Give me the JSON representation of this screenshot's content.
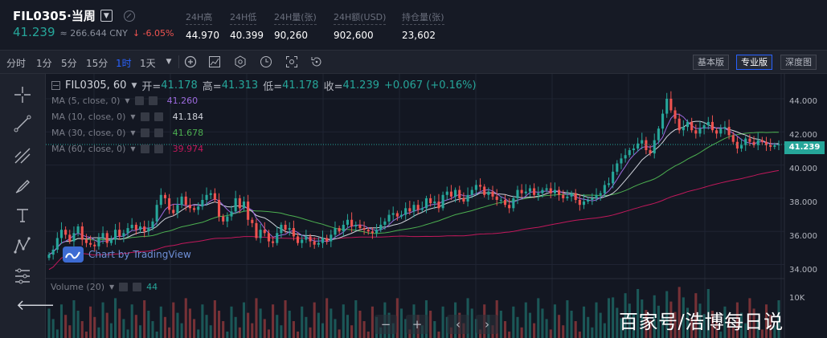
{
  "header": {
    "symbol": "FIL0305·当周",
    "last_price": "41.239",
    "approx_cny": "≈ 266.644 CNY",
    "change": "↓ -6.05%",
    "stats": [
      {
        "label": "24H高",
        "value": "44.970"
      },
      {
        "label": "24H低",
        "value": "40.399"
      },
      {
        "label": "24H量(张)",
        "value": "90,260"
      },
      {
        "label": "24H额(USD)",
        "value": "902,600"
      },
      {
        "label": "持仓量(张)",
        "value": "23,602"
      }
    ]
  },
  "toolbar": {
    "intervals": [
      "分时",
      "1分",
      "5分",
      "15分",
      "1时",
      "1天"
    ],
    "active_interval": "1时",
    "view_buttons": [
      "基本版",
      "专业版",
      "深度图"
    ],
    "active_view": "专业版"
  },
  "legend": {
    "symbol": "FIL0305, 60",
    "open_label": "开=",
    "open": "41.178",
    "high_label": "高=",
    "high": "41.313",
    "low_label": "低=",
    "low": "41.178",
    "close_label": "收=",
    "close": "41.239",
    "change": "+0.067 (+0.16%)",
    "mas": [
      {
        "label": "MA (5, close, 0)",
        "value": "41.260",
        "color": "#9c6ade"
      },
      {
        "label": "MA (10, close, 0)",
        "value": "41.184",
        "color": "#d1d4dc"
      },
      {
        "label": "MA (30, close, 0)",
        "value": "41.678",
        "color": "#4caf50"
      },
      {
        "label": "MA (60, close, 0)",
        "value": "39.974",
        "color": "#c2185b"
      }
    ],
    "volume_label": "Volume (20)",
    "volume_value": "44"
  },
  "watermark": "Chart by TradingView",
  "price_axis": [
    "44.000",
    "42.000",
    "40.000",
    "38.000",
    "36.000",
    "34.000"
  ],
  "volume_axis": "10K",
  "current_price_tag": "41.239",
  "nav_buttons": [
    "−",
    "+",
    "‹",
    "›"
  ],
  "brand_text": "百家号/浩博每日说",
  "colors": {
    "up": "#26a69a",
    "down": "#ef5350",
    "background": "#131722",
    "accent": "#2962ff"
  },
  "chart_data": {
    "type": "candlestick",
    "interval": "60",
    "ylim": [
      33.3,
      45.5
    ],
    "close": [
      34.6,
      34.9,
      35.6,
      36.1,
      35.8,
      35.4,
      35.9,
      36.3,
      35.5,
      35.3,
      35.2,
      35.1,
      35.6,
      35.9,
      35.3,
      35.5,
      36.1,
      35.7,
      35.9,
      36.2,
      36.4,
      36.1,
      36.3,
      36.0,
      36.2,
      36.6,
      37.6,
      38.2,
      38.0,
      37.3,
      37.1,
      37.6,
      38.1,
      37.6,
      37.4,
      37.3,
      37.5,
      37.9,
      38.2,
      38.3,
      37.9,
      36.9,
      36.6,
      36.9,
      37.2,
      38.0,
      37.4,
      37.8,
      36.7,
      36.5,
      35.6,
      36.1,
      35.9,
      35.4,
      35.3,
      35.9,
      36.4,
      36.1,
      36.2,
      35.7,
      35.3,
      35.5,
      35.7,
      35.4,
      35.2,
      35.3,
      35.6,
      35.4,
      35.8,
      36.2,
      36.0,
      36.4,
      36.7,
      36.3,
      36.4,
      36.2,
      36.1,
      36.0,
      35.9,
      36.1,
      36.4,
      36.6,
      37.0,
      37.1,
      36.9,
      37.0,
      37.4,
      37.2,
      37.6,
      37.3,
      37.4,
      38.0,
      37.7,
      37.8,
      37.4,
      38.2,
      38.4,
      38.1,
      38.5,
      38.0,
      37.8,
      38.2,
      38.5,
      38.8,
      38.7,
      38.2,
      38.4,
      38.1,
      37.9,
      37.9,
      37.6,
      37.4,
      38.0,
      38.5,
      38.3,
      38.4,
      38.6,
      38.2,
      38.3,
      38.5,
      38.6,
      38.3,
      38.5,
      38.2,
      38.0,
      38.1,
      38.3,
      37.9,
      37.6,
      37.8,
      37.9,
      38.0,
      38.2,
      38.3,
      38.8,
      38.9,
      39.6,
      40.1,
      40.4,
      40.6,
      40.9,
      41.0,
      41.3,
      41.5,
      40.9,
      40.7,
      41.5,
      42.2,
      43.1,
      44.0,
      43.3,
      42.8,
      42.1,
      42.3,
      42.6,
      42.1,
      41.9,
      42.2,
      42.4,
      42.6,
      42.1,
      41.9,
      42.2,
      42.3,
      41.8,
      41.4,
      41.0,
      41.2,
      41.6,
      41.4,
      41.2,
      41.5,
      41.4,
      41.2,
      41.1,
      41.2,
      41.24
    ],
    "ma5_last": 41.26,
    "ma10_last": 41.184,
    "ma30_last": 41.678,
    "ma60_last": 39.974,
    "volume_last": 44
  }
}
